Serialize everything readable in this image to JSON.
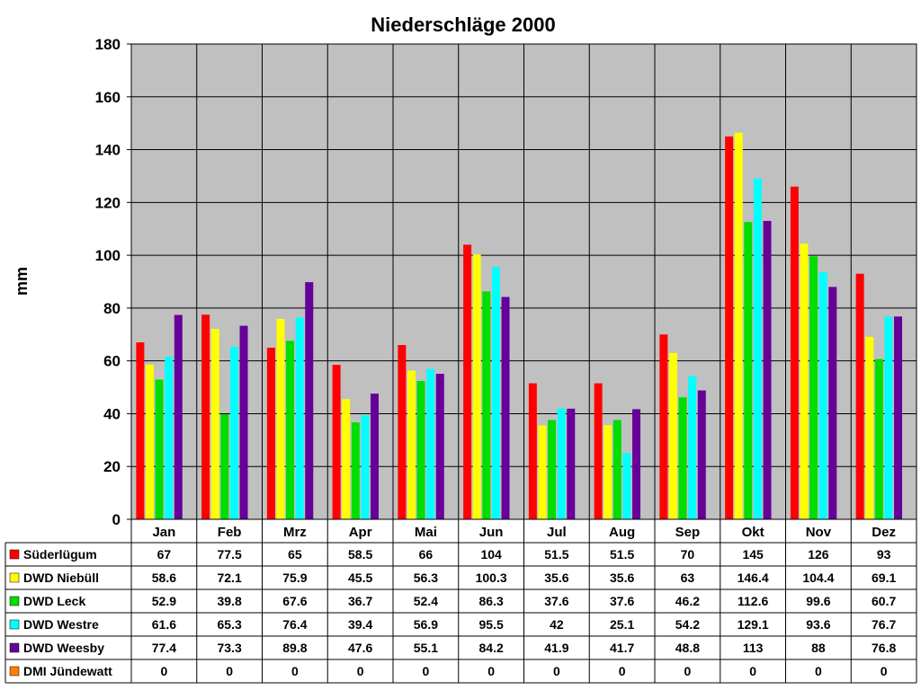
{
  "chart_data": {
    "type": "bar",
    "title": "Niederschläge 2000",
    "xlabel": "",
    "ylabel": "mm",
    "ylim": [
      0,
      180
    ],
    "yticks": [
      0,
      20,
      40,
      60,
      80,
      100,
      120,
      140,
      160,
      180
    ],
    "grid": true,
    "legend": "data-table-below",
    "plot_background": "#c0c0c0",
    "categories": [
      "Jan",
      "Feb",
      "Mrz",
      "Apr",
      "Mai",
      "Jun",
      "Jul",
      "Aug",
      "Sep",
      "Okt",
      "Nov",
      "Dez"
    ],
    "series": [
      {
        "name": "Süderlügum",
        "color": "#ff0000",
        "values": [
          67,
          77.5,
          65,
          58.5,
          66,
          104,
          51.5,
          51.5,
          70,
          145,
          126,
          93
        ]
      },
      {
        "name": "DWD Niebüll",
        "color": "#ffff00",
        "values": [
          58.6,
          72.1,
          75.9,
          45.5,
          56.3,
          100.3,
          35.6,
          35.6,
          63,
          146.4,
          104.4,
          69.1
        ]
      },
      {
        "name": "DWD Leck",
        "color": "#00dd00",
        "values": [
          52.9,
          39.8,
          67.6,
          36.7,
          52.4,
          86.3,
          37.6,
          37.6,
          46.2,
          112.6,
          99.6,
          60.7
        ]
      },
      {
        "name": "DWD Westre",
        "color": "#00ffff",
        "values": [
          61.6,
          65.3,
          76.4,
          39.4,
          56.9,
          95.5,
          42,
          25.1,
          54.2,
          129.1,
          93.6,
          76.7
        ]
      },
      {
        "name": "DWD Weesby",
        "color": "#660099",
        "values": [
          77.4,
          73.3,
          89.8,
          47.6,
          55.1,
          84.2,
          41.9,
          41.7,
          48.8,
          113,
          88,
          76.8
        ]
      },
      {
        "name": "DMI Jündewatt",
        "color": "#ff8000",
        "values": [
          0,
          0,
          0,
          0,
          0,
          0,
          0,
          0,
          0,
          0,
          0,
          0
        ]
      }
    ]
  }
}
